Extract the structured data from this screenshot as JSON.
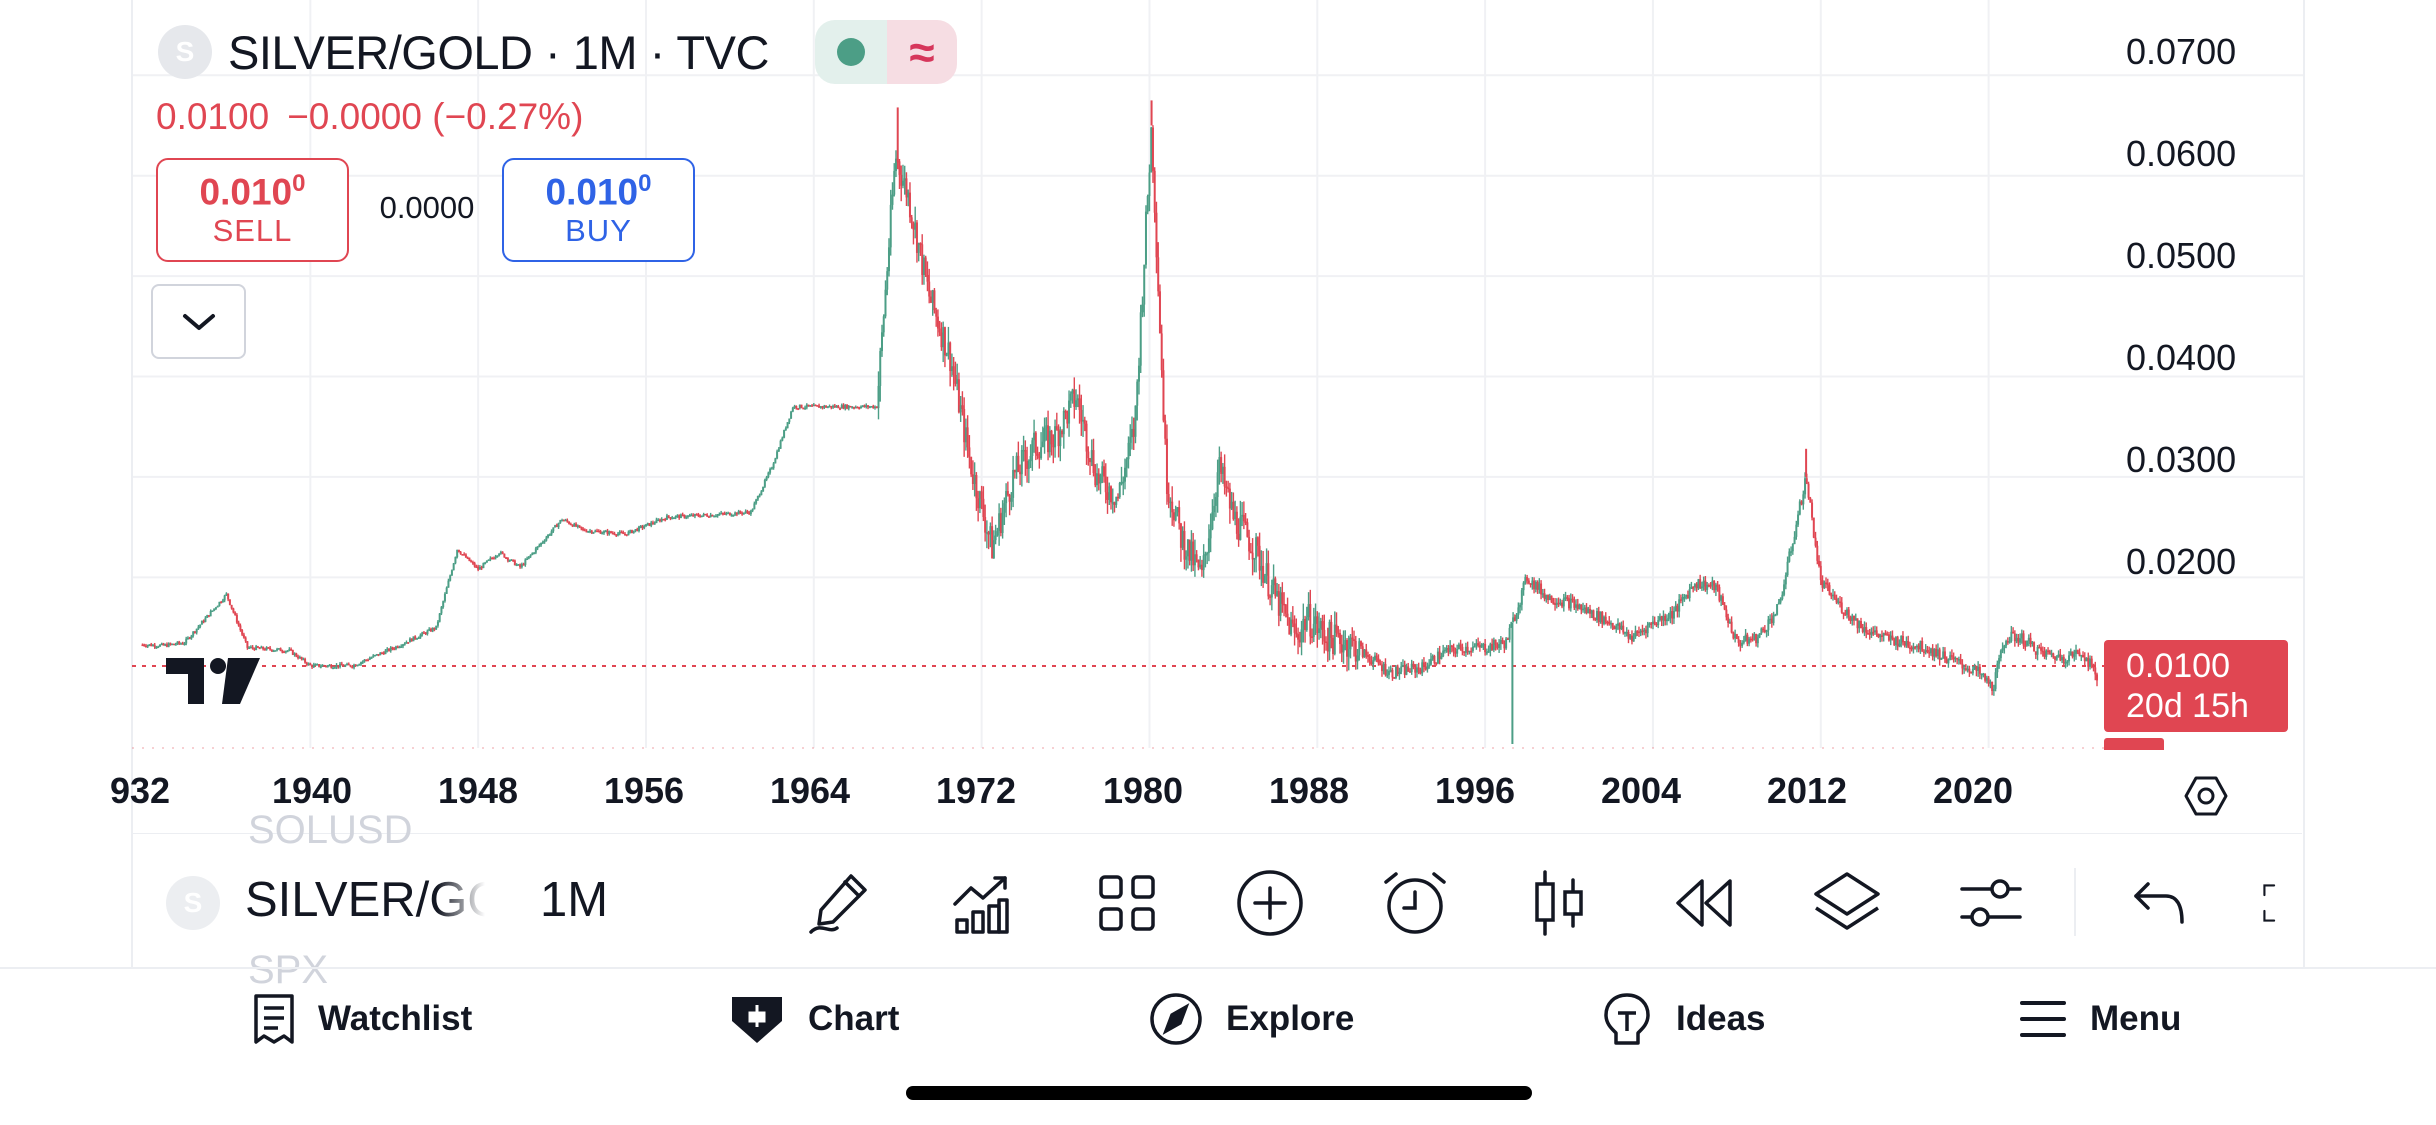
{
  "legend": {
    "symbol_logo": "S",
    "title": "SILVER/GOLD · 1M · TVC",
    "last_price": "0.0100",
    "change": "−0.0000 (−0.27%)"
  },
  "trade": {
    "sell_price": "0.010",
    "sell_price_sup": "0",
    "sell_label": "SELL",
    "spread": "0.0000",
    "buy_price": "0.010",
    "buy_price_sup": "0",
    "buy_label": "BUY"
  },
  "price_axis": {
    "ticks": [
      "0.0700",
      "0.0600",
      "0.0500",
      "0.0400",
      "0.0300",
      "0.0200"
    ],
    "last_price_badge": "0.0100",
    "countdown": "20d 15h"
  },
  "time_axis": {
    "ticks": [
      "932",
      "1940",
      "1948",
      "1956",
      "1964",
      "1972",
      "1980",
      "1988",
      "1996",
      "2004",
      "2012",
      "2020"
    ]
  },
  "toolbar": {
    "symbol_logo": "S",
    "symbol": "SILVER/GOLD",
    "interval": "1M",
    "ghost_above": "SOLUSD",
    "ghost_below": "SPX",
    "tools": [
      "pencil-icon",
      "indicators-icon",
      "layout-grid-icon",
      "plus-circle-icon",
      "alarm-icon",
      "candles-icon",
      "replay-icon",
      "layers-icon",
      "settings-sliders-icon",
      "undo-icon",
      "fullscreen-icon"
    ]
  },
  "bottom_nav": {
    "items": [
      {
        "label": "Watchlist",
        "icon": "watchlist-icon"
      },
      {
        "label": "Chart",
        "icon": "chart-icon"
      },
      {
        "label": "Explore",
        "icon": "compass-icon"
      },
      {
        "label": "Ideas",
        "icon": "ideas-icon"
      },
      {
        "label": "Menu",
        "icon": "menu-icon"
      }
    ]
  },
  "colors": {
    "up": "#4c9e86",
    "down": "#e04652",
    "buy": "#2f63e6",
    "text": "#131722"
  },
  "chart_data": {
    "type": "candlestick",
    "symbol": "SILVER/GOLD",
    "interval": "1M",
    "x_unit": "year",
    "ylim": [
      0.003,
      0.0775
    ],
    "xlim": [
      1931.5,
      2025.5
    ],
    "grid": true,
    "last_price": 0.01,
    "series": [
      {
        "name": "SILVER/GOLD",
        "points": [
          [
            1932,
            0.0133
          ],
          [
            1933,
            0.0132
          ],
          [
            1934,
            0.0135
          ],
          [
            1936,
            0.0183
          ],
          [
            1937,
            0.013
          ],
          [
            1939,
            0.0127
          ],
          [
            1940,
            0.0112
          ],
          [
            1942,
            0.0112
          ],
          [
            1944,
            0.013
          ],
          [
            1946,
            0.015
          ],
          [
            1947,
            0.0228
          ],
          [
            1948,
            0.0208
          ],
          [
            1949,
            0.0225
          ],
          [
            1950,
            0.021
          ],
          [
            1952,
            0.0258
          ],
          [
            1953,
            0.0247
          ],
          [
            1955,
            0.0243
          ],
          [
            1957,
            0.026
          ],
          [
            1959,
            0.0262
          ],
          [
            1961,
            0.0265
          ],
          [
            1962,
            0.031
          ],
          [
            1963,
            0.037
          ],
          [
            1965,
            0.037
          ],
          [
            1967,
            0.037
          ],
          [
            1967.9,
            0.062
          ],
          [
            1968.5,
            0.058
          ],
          [
            1969.5,
            0.048
          ],
          [
            1970.5,
            0.042
          ],
          [
            1971.5,
            0.031
          ],
          [
            1972.5,
            0.023
          ],
          [
            1973.5,
            0.03
          ],
          [
            1974.5,
            0.033
          ],
          [
            1975.5,
            0.034
          ],
          [
            1976.5,
            0.038
          ],
          [
            1977.5,
            0.03
          ],
          [
            1978.5,
            0.028
          ],
          [
            1979.3,
            0.035
          ],
          [
            1980.1,
            0.065
          ],
          [
            1980.8,
            0.03
          ],
          [
            1981.5,
            0.024
          ],
          [
            1982.5,
            0.02
          ],
          [
            1983.3,
            0.031
          ],
          [
            1984,
            0.026
          ],
          [
            1985,
            0.023
          ],
          [
            1986,
            0.018
          ],
          [
            1987,
            0.014
          ],
          [
            1987.5,
            0.016
          ],
          [
            1988.5,
            0.014
          ],
          [
            1989.5,
            0.0135
          ],
          [
            1990.5,
            0.012
          ],
          [
            1991.5,
            0.0105
          ],
          [
            1993,
            0.011
          ],
          [
            1994,
            0.0125
          ],
          [
            1995,
            0.013
          ],
          [
            1996,
            0.013
          ],
          [
            1997,
            0.0135
          ],
          [
            1998,
            0.02
          ],
          [
            1999,
            0.018
          ],
          [
            2000,
            0.0175
          ],
          [
            2001,
            0.0165
          ],
          [
            2002,
            0.0155
          ],
          [
            2003,
            0.014
          ],
          [
            2004,
            0.0155
          ],
          [
            2005,
            0.0165
          ],
          [
            2006,
            0.0195
          ],
          [
            2007,
            0.019
          ],
          [
            2008,
            0.0135
          ],
          [
            2009,
            0.014
          ],
          [
            2010,
            0.017
          ],
          [
            2011.3,
            0.03
          ],
          [
            2012,
            0.0195
          ],
          [
            2013,
            0.017
          ],
          [
            2014,
            0.015
          ],
          [
            2015,
            0.014
          ],
          [
            2016,
            0.0135
          ],
          [
            2017,
            0.013
          ],
          [
            2018,
            0.012
          ],
          [
            2019.5,
            0.0105
          ],
          [
            2020.2,
            0.009
          ],
          [
            2020.8,
            0.014
          ],
          [
            2021.5,
            0.014
          ],
          [
            2022.5,
            0.0125
          ],
          [
            2023.5,
            0.012
          ],
          [
            2024.5,
            0.0125
          ],
          [
            2025.2,
            0.01
          ]
        ]
      }
    ]
  }
}
